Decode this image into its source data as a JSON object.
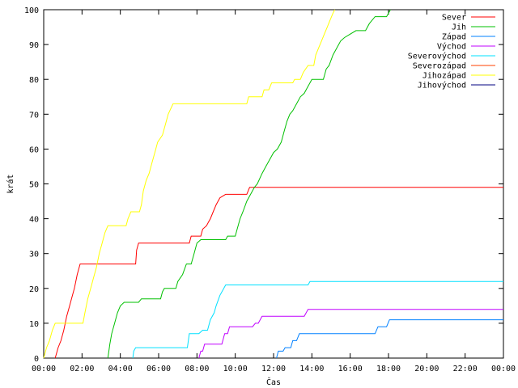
{
  "chart_data": {
    "type": "line",
    "title": "",
    "xlabel": "Čas",
    "ylabel": "krát",
    "xlim": [
      0,
      24
    ],
    "ylim": [
      0,
      100
    ],
    "grid": false,
    "legend_position": "top-right",
    "x_ticks": [
      {
        "value": 0,
        "label": "00:00"
      },
      {
        "value": 2,
        "label": "02:00"
      },
      {
        "value": 4,
        "label": "04:00"
      },
      {
        "value": 6,
        "label": "06:00"
      },
      {
        "value": 8,
        "label": "08:00"
      },
      {
        "value": 10,
        "label": "10:00"
      },
      {
        "value": 12,
        "label": "12:00"
      },
      {
        "value": 14,
        "label": "14:00"
      },
      {
        "value": 16,
        "label": "16:00"
      },
      {
        "value": 18,
        "label": "18:00"
      },
      {
        "value": 20,
        "label": "20:00"
      },
      {
        "value": 22,
        "label": "22:00"
      },
      {
        "value": 24,
        "label": "00:00"
      }
    ],
    "y_ticks": [
      {
        "value": 0,
        "label": "0"
      },
      {
        "value": 10,
        "label": "10"
      },
      {
        "value": 20,
        "label": "20"
      },
      {
        "value": 30,
        "label": "30"
      },
      {
        "value": 40,
        "label": "40"
      },
      {
        "value": 50,
        "label": "50"
      },
      {
        "value": 60,
        "label": "60"
      },
      {
        "value": 70,
        "label": "70"
      },
      {
        "value": 80,
        "label": "80"
      },
      {
        "value": 90,
        "label": "90"
      },
      {
        "value": 100,
        "label": "100"
      }
    ],
    "series": [
      {
        "name": "Sever",
        "color": "#ff0000",
        "points": [
          [
            0.6,
            0
          ],
          [
            0.75,
            3
          ],
          [
            0.9,
            5
          ],
          [
            1.05,
            8
          ],
          [
            1.2,
            12
          ],
          [
            1.35,
            15
          ],
          [
            1.5,
            18
          ],
          [
            1.6,
            20
          ],
          [
            1.75,
            24
          ],
          [
            1.9,
            27
          ],
          [
            4.8,
            27
          ],
          [
            4.85,
            31
          ],
          [
            4.95,
            33
          ],
          [
            7.6,
            33
          ],
          [
            7.7,
            35
          ],
          [
            8.2,
            35
          ],
          [
            8.3,
            37
          ],
          [
            8.5,
            38
          ],
          [
            8.6,
            39
          ],
          [
            8.7,
            40
          ],
          [
            8.85,
            42
          ],
          [
            9.0,
            44
          ],
          [
            9.2,
            46
          ],
          [
            9.5,
            47
          ],
          [
            10.6,
            47
          ],
          [
            10.75,
            49
          ],
          [
            24,
            49
          ]
        ]
      },
      {
        "name": "Jih",
        "color": "#00c000",
        "points": [
          [
            3.35,
            0
          ],
          [
            3.45,
            4
          ],
          [
            3.55,
            7
          ],
          [
            3.7,
            10
          ],
          [
            3.85,
            13
          ],
          [
            4.0,
            15
          ],
          [
            4.2,
            16
          ],
          [
            4.95,
            16
          ],
          [
            5.1,
            17
          ],
          [
            6.1,
            17
          ],
          [
            6.2,
            19
          ],
          [
            6.3,
            20
          ],
          [
            6.9,
            20
          ],
          [
            7.0,
            22
          ],
          [
            7.25,
            24
          ],
          [
            7.45,
            27
          ],
          [
            7.7,
            27
          ],
          [
            7.85,
            30
          ],
          [
            8.0,
            33
          ],
          [
            8.2,
            34
          ],
          [
            9.5,
            34
          ],
          [
            9.6,
            35
          ],
          [
            10.0,
            35
          ],
          [
            10.1,
            37
          ],
          [
            10.25,
            40
          ],
          [
            10.4,
            42
          ],
          [
            10.6,
            45
          ],
          [
            10.8,
            47
          ],
          [
            11.0,
            49
          ],
          [
            11.15,
            50
          ],
          [
            11.4,
            53
          ],
          [
            11.6,
            55
          ],
          [
            11.8,
            57
          ],
          [
            12.0,
            59
          ],
          [
            12.2,
            60
          ],
          [
            12.4,
            62
          ],
          [
            12.55,
            65
          ],
          [
            12.7,
            68
          ],
          [
            12.85,
            70
          ],
          [
            13.0,
            71
          ],
          [
            13.2,
            73
          ],
          [
            13.4,
            75
          ],
          [
            13.6,
            76
          ],
          [
            13.8,
            78
          ],
          [
            14.0,
            80
          ],
          [
            14.6,
            80
          ],
          [
            14.75,
            83
          ],
          [
            14.9,
            84
          ],
          [
            15.1,
            87
          ],
          [
            15.3,
            89
          ],
          [
            15.5,
            91
          ],
          [
            15.7,
            92
          ],
          [
            16.0,
            93
          ],
          [
            16.3,
            94
          ],
          [
            16.8,
            94
          ],
          [
            17.0,
            96
          ],
          [
            17.3,
            98
          ],
          [
            17.9,
            98
          ],
          [
            18.1,
            100
          ]
        ]
      },
      {
        "name": "Západ",
        "color": "#0080ff",
        "points": [
          [
            12.15,
            0
          ],
          [
            12.25,
            2
          ],
          [
            12.5,
            2
          ],
          [
            12.6,
            3
          ],
          [
            12.9,
            3
          ],
          [
            13.0,
            5
          ],
          [
            13.2,
            5
          ],
          [
            13.35,
            7
          ],
          [
            17.3,
            7
          ],
          [
            17.45,
            9
          ],
          [
            17.9,
            9
          ],
          [
            18.05,
            11
          ],
          [
            24,
            11
          ]
        ]
      },
      {
        "name": "Východ",
        "color": "#c000ff",
        "points": [
          [
            8.1,
            0
          ],
          [
            8.2,
            2
          ],
          [
            8.3,
            2
          ],
          [
            8.4,
            4
          ],
          [
            9.3,
            4
          ],
          [
            9.45,
            7
          ],
          [
            9.6,
            7
          ],
          [
            9.7,
            9
          ],
          [
            10.9,
            9
          ],
          [
            11.05,
            10
          ],
          [
            11.2,
            10
          ],
          [
            11.4,
            12
          ],
          [
            13.1,
            12
          ],
          [
            13.2,
            12
          ],
          [
            13.3,
            12
          ],
          [
            13.6,
            12
          ],
          [
            13.8,
            14
          ],
          [
            24,
            14
          ]
        ]
      },
      {
        "name": "Severovýchod",
        "color": "#00e0ff",
        "points": [
          [
            4.65,
            0
          ],
          [
            4.7,
            2
          ],
          [
            4.8,
            3
          ],
          [
            7.5,
            3
          ],
          [
            7.6,
            7
          ],
          [
            8.1,
            7
          ],
          [
            8.3,
            8
          ],
          [
            8.55,
            8
          ],
          [
            8.7,
            11
          ],
          [
            8.9,
            13
          ],
          [
            9.0,
            15
          ],
          [
            9.2,
            18
          ],
          [
            9.4,
            20
          ],
          [
            9.5,
            21
          ],
          [
            13.8,
            21
          ],
          [
            13.9,
            22
          ],
          [
            24,
            22
          ]
        ]
      },
      {
        "name": "Severozápad",
        "color": "#ff4000",
        "points": []
      },
      {
        "name": "Jihozápad",
        "color": "#ffff00",
        "points": [
          [
            0,
            0
          ],
          [
            0.15,
            3
          ],
          [
            0.3,
            5
          ],
          [
            0.45,
            8
          ],
          [
            0.6,
            10
          ],
          [
            2.05,
            10
          ],
          [
            2.15,
            13
          ],
          [
            2.3,
            17
          ],
          [
            2.5,
            21
          ],
          [
            2.6,
            23
          ],
          [
            2.75,
            26
          ],
          [
            2.9,
            30
          ],
          [
            3.05,
            33
          ],
          [
            3.2,
            36
          ],
          [
            3.35,
            38
          ],
          [
            4.3,
            38
          ],
          [
            4.4,
            40
          ],
          [
            4.55,
            42
          ],
          [
            5.0,
            42
          ],
          [
            5.1,
            44
          ],
          [
            5.2,
            48
          ],
          [
            5.35,
            51
          ],
          [
            5.5,
            53
          ],
          [
            5.65,
            56
          ],
          [
            5.8,
            59
          ],
          [
            5.95,
            62
          ],
          [
            6.2,
            64
          ],
          [
            6.35,
            67
          ],
          [
            6.5,
            70
          ],
          [
            6.75,
            73
          ],
          [
            10.6,
            73
          ],
          [
            10.7,
            75
          ],
          [
            11.4,
            75
          ],
          [
            11.5,
            77
          ],
          [
            11.75,
            77
          ],
          [
            11.9,
            79
          ],
          [
            13.0,
            79
          ],
          [
            13.1,
            80
          ],
          [
            13.4,
            80
          ],
          [
            13.55,
            82
          ],
          [
            13.8,
            84
          ],
          [
            14.1,
            84
          ],
          [
            14.2,
            87
          ],
          [
            14.35,
            89
          ],
          [
            14.5,
            91
          ],
          [
            14.65,
            93
          ],
          [
            14.8,
            95
          ],
          [
            14.95,
            97
          ],
          [
            15.1,
            99
          ],
          [
            15.2,
            100
          ]
        ]
      },
      {
        "name": "Jihovýchod",
        "color": "#000080",
        "points": []
      }
    ]
  }
}
